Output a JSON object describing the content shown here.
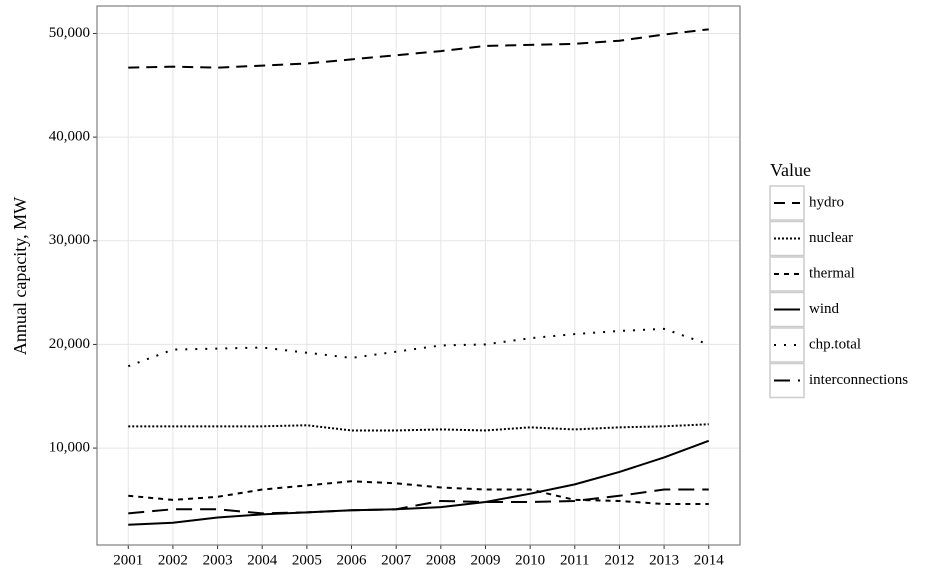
{
  "chart_data": {
    "type": "line",
    "y_label": "Annual capacity, MW",
    "legend_title": "Value",
    "legend_position": "right",
    "grid": true,
    "x": [
      2001,
      2002,
      2003,
      2004,
      2005,
      2006,
      2007,
      2008,
      2009,
      2010,
      2011,
      2012,
      2013,
      2014
    ],
    "xlim": [
      2000.3,
      2014.7
    ],
    "xticks": [
      2001,
      2002,
      2003,
      2004,
      2005,
      2006,
      2007,
      2008,
      2009,
      2010,
      2011,
      2012,
      2013,
      2014
    ],
    "ylim": [
      650,
      52650
    ],
    "yticks": [
      {
        "value": 10000,
        "label": "10,000"
      },
      {
        "value": 20000,
        "label": "20,000"
      },
      {
        "value": 30000,
        "label": "30,000"
      },
      {
        "value": 40000,
        "label": "40,000"
      },
      {
        "value": 50000,
        "label": "50,000"
      }
    ],
    "series": [
      {
        "name": "hydro",
        "color": "#000000",
        "dash": "11,7",
        "values": [
          46700,
          46800,
          46700,
          46900,
          47100,
          47500,
          47900,
          48300,
          48800,
          48900,
          49000,
          49300,
          49900,
          50400
        ]
      },
      {
        "name": "nuclear",
        "color": "#000000",
        "dash": "2,2",
        "values": [
          12100,
          12100,
          12100,
          12100,
          12200,
          11700,
          11700,
          11800,
          11700,
          12000,
          11800,
          12000,
          12100,
          12300
        ]
      },
      {
        "name": "thermal",
        "color": "#000000",
        "dash": "5,5",
        "values": [
          5400,
          5000,
          5300,
          6000,
          6400,
          6800,
          6600,
          6200,
          6000,
          6000,
          5000,
          4900,
          4600,
          4600
        ]
      },
      {
        "name": "wind",
        "color": "#000000",
        "dash": "none",
        "values": [
          2600,
          2800,
          3300,
          3600,
          3800,
          4000,
          4100,
          4300,
          4800,
          5600,
          6500,
          7700,
          9100,
          10700
        ]
      },
      {
        "name": "chp.total",
        "color": "#000000",
        "dash": "2,8",
        "values": [
          17900,
          19500,
          19600,
          19700,
          19200,
          18700,
          19300,
          19900,
          20000,
          20600,
          21000,
          21300,
          21500,
          20000
        ]
      },
      {
        "name": "interconnections",
        "color": "#000000",
        "dash": "16,8",
        "values": [
          3700,
          4100,
          4100,
          3700,
          3800,
          4000,
          4100,
          4900,
          4800,
          4800,
          4900,
          5400,
          6000,
          6000
        ]
      }
    ]
  }
}
